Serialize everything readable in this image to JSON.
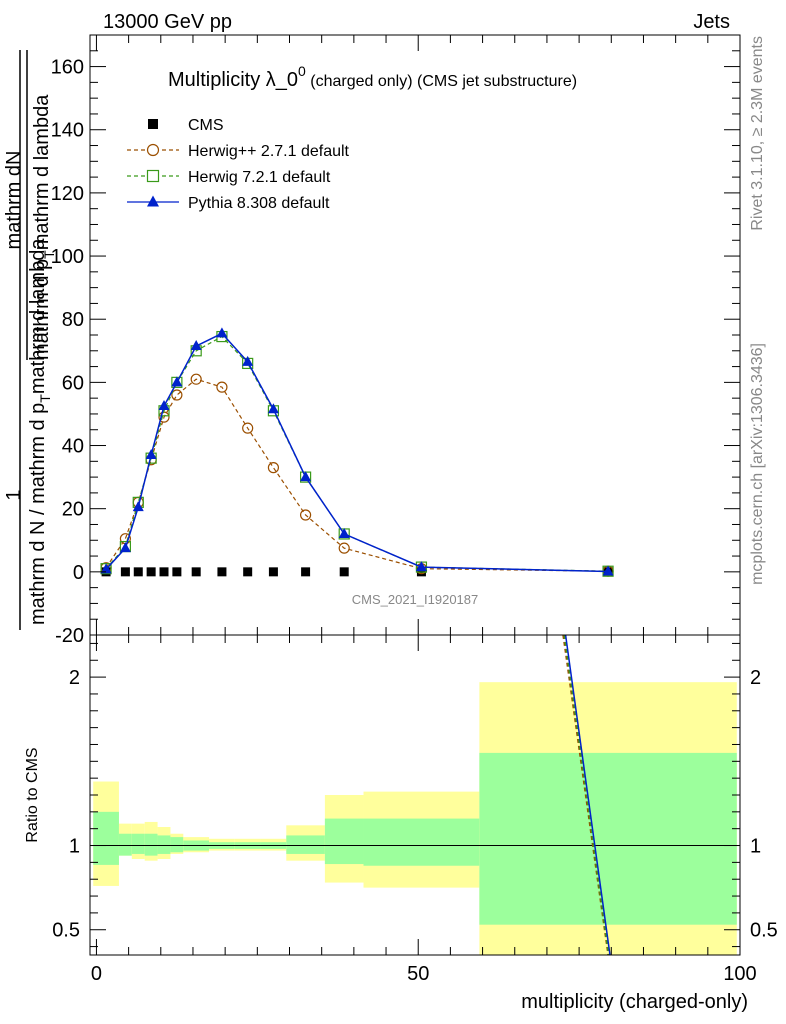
{
  "header": {
    "left": "13000 GeV pp",
    "right": "Jets"
  },
  "side_labels": {
    "rivet": "Rivet 3.1.10, ≥ 2.3M events",
    "mcplots": "mcplots.cern.ch [arXiv:1306.3436]"
  },
  "watermark": "CMS_2021_I1920187",
  "chart_data": [
    {
      "type": "line",
      "title_main": "Multiplicity λ_0",
      "title_sup": "0",
      "title_sub": " (charged only) (CMS jet substructure)",
      "ylabel": "mathrm d N / mathrm d p_T mathrm d lambda / mathrm d p_T mathrm d lambda",
      "ylabel_prefix": "1",
      "ylabel_numerator": "mathrm dN",
      "ylabel_denominator": "mathrm d N / mathrm d p",
      "ylabel_p": "mathrm d p",
      "ylabel_T": "T",
      "ylabel_mid": "mathrm d p",
      "ylabel_mid_rest": "mathrm d lambda",
      "ylabel_den_rest": "mathrm d lambda",
      "xlim": [
        -1,
        100
      ],
      "ylim": [
        -20,
        170
      ],
      "yticks": [
        -20,
        0,
        20,
        40,
        60,
        80,
        100,
        120,
        140,
        160
      ],
      "legend_position": "top-left",
      "series": [
        {
          "name": "CMS",
          "color": "#000000",
          "marker": "square-filled",
          "x": [
            1.5,
            4.5,
            6.5,
            8.5,
            10.5,
            12.5,
            15.5,
            19.5,
            23.5,
            27.5,
            32.5,
            38.5,
            50.5,
            79.5
          ],
          "y": [
            0,
            0,
            0,
            0,
            0,
            0,
            0,
            0,
            0,
            0,
            0,
            0,
            0,
            0
          ]
        },
        {
          "name": "Herwig++ 2.7.1 default",
          "color": "#9b4f00",
          "marker": "circle-open",
          "x": [
            1.5,
            4.5,
            6.5,
            8.5,
            10.5,
            12.5,
            15.5,
            19.5,
            23.5,
            27.5,
            32.5,
            38.5,
            50.5,
            79.5
          ],
          "y": [
            1.3,
            10.5,
            22.0,
            35.5,
            49.0,
            56.0,
            61.0,
            58.5,
            45.5,
            33.0,
            18.0,
            7.5,
            1.0,
            0.2
          ]
        },
        {
          "name": "Herwig 7.2.1 default",
          "color": "#3a9a1a",
          "marker": "square-open",
          "x": [
            1.5,
            4.5,
            6.5,
            8.5,
            10.5,
            12.5,
            15.5,
            19.5,
            23.5,
            27.5,
            32.5,
            38.5,
            50.5,
            79.5
          ],
          "y": [
            1.0,
            8.0,
            22.0,
            36.0,
            51.0,
            60.0,
            70.0,
            74.5,
            66.0,
            51.0,
            30.0,
            12.0,
            1.5,
            0.2
          ]
        },
        {
          "name": "Pythia 8.308 default",
          "color": "#0022cc",
          "marker": "triangle-filled",
          "x": [
            1.5,
            4.5,
            6.5,
            8.5,
            10.5,
            12.5,
            15.5,
            19.5,
            23.5,
            27.5,
            32.5,
            38.5,
            50.5,
            79.5
          ],
          "y": [
            0.8,
            7.5,
            20.5,
            37.0,
            52.5,
            60.0,
            71.5,
            75.5,
            66.5,
            51.5,
            30.0,
            12.0,
            1.5,
            0.1
          ]
        }
      ]
    },
    {
      "type": "area",
      "ylabel": "Ratio to CMS",
      "xlabel": "multiplicity (charged-only)",
      "xlim": [
        -1,
        100
      ],
      "ylim": [
        0.35,
        2.25
      ],
      "yticks": [
        0.5,
        1,
        2
      ],
      "xticks": [
        0,
        50,
        100
      ],
      "bands": [
        {
          "x0": -0.5,
          "x1": 3.5,
          "inner": [
            0.885,
            1.2
          ],
          "outer": [
            0.76,
            1.38
          ]
        },
        {
          "x0": 3.5,
          "x1": 5.5,
          "inner": [
            0.94,
            1.07
          ],
          "outer": [
            0.94,
            1.13
          ]
        },
        {
          "x0": 5.5,
          "x1": 7.5,
          "inner": [
            0.95,
            1.07
          ],
          "outer": [
            0.92,
            1.13
          ]
        },
        {
          "x0": 7.5,
          "x1": 9.5,
          "inner": [
            0.94,
            1.07
          ],
          "outer": [
            0.91,
            1.14
          ]
        },
        {
          "x0": 9.5,
          "x1": 11.5,
          "inner": [
            0.95,
            1.06
          ],
          "outer": [
            0.92,
            1.11
          ]
        },
        {
          "x0": 11.5,
          "x1": 13.5,
          "inner": [
            0.96,
            1.05
          ],
          "outer": [
            0.95,
            1.07
          ]
        },
        {
          "x0": 13.5,
          "x1": 17.5,
          "inner": [
            0.97,
            1.03
          ],
          "outer": [
            0.96,
            1.05
          ]
        },
        {
          "x0": 17.5,
          "x1": 21.5,
          "inner": [
            0.98,
            1.02
          ],
          "outer": [
            0.97,
            1.04
          ]
        },
        {
          "x0": 21.5,
          "x1": 25.5,
          "inner": [
            0.98,
            1.02
          ],
          "outer": [
            0.97,
            1.04
          ]
        },
        {
          "x0": 25.5,
          "x1": 29.5,
          "inner": [
            0.98,
            1.02
          ],
          "outer": [
            0.97,
            1.04
          ]
        },
        {
          "x0": 29.5,
          "x1": 35.5,
          "inner": [
            0.95,
            1.06
          ],
          "outer": [
            0.91,
            1.12
          ]
        },
        {
          "x0": 35.5,
          "x1": 41.5,
          "inner": [
            0.89,
            1.16
          ],
          "outer": [
            0.78,
            1.3
          ]
        },
        {
          "x0": 41.5,
          "x1": 59.5,
          "inner": [
            0.88,
            1.16
          ],
          "outer": [
            0.75,
            1.32
          ]
        },
        {
          "x0": 59.5,
          "x1": 99.5,
          "inner": [
            0.53,
            1.55
          ],
          "outer": [
            0.35,
            1.97
          ]
        }
      ],
      "series": [
        {
          "name": "Herwig++ 2.7.1 default",
          "color": "#9b4f00",
          "x": [
            72.5,
            79.5
          ],
          "y": [
            2.25,
            0.35
          ]
        },
        {
          "name": "Herwig 7.2.1 default",
          "color": "#3a9a1a",
          "x": [
            72.7,
            79.6
          ],
          "y": [
            2.25,
            0.35
          ]
        },
        {
          "name": "Pythia 8.308 default",
          "color": "#0022cc",
          "x": [
            72.9,
            79.8
          ],
          "y": [
            2.25,
            0.35
          ]
        }
      ]
    }
  ],
  "colors": {
    "band_inner": "#9cff9c",
    "band_outer": "#ffff9c"
  }
}
